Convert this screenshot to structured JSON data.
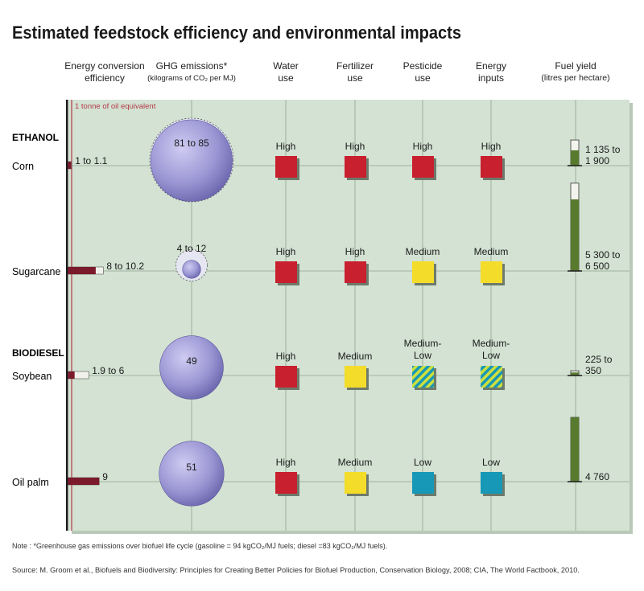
{
  "title": "Estimated feedstock efficiency and environmental impacts",
  "columns": {
    "energy": [
      "Energy conversion",
      "efficiency"
    ],
    "ghg": [
      "GHG emissions*",
      "(kilograms of CO₂ per MJ)"
    ],
    "water": [
      "Water",
      "use"
    ],
    "fertilizer": [
      "Fertilizer",
      "use"
    ],
    "pesticide": [
      "Pesticide",
      "use"
    ],
    "energy_inputs": [
      "Energy",
      "inputs"
    ],
    "yield": [
      "Fuel yield",
      "(litres per hectare)"
    ]
  },
  "reference_label": "1 tonne of oil equivalent",
  "groups": {
    "ethanol": "ETHANOL",
    "biodiesel": "BIODIESEL"
  },
  "note": "Note : *Greenhouse gas emissions over biofuel life cycle (gasoline = 94 kgCO₂/MJ fuels; diesel =83 kgCO₂/MJ fuels).",
  "source": "Source: M. Groom et al., Biofuels and Biodiversity: Principles for Creating Better Policies for Biofuel Production, Conservation Biology, 2008; CIA, The World Factbook, 2010.",
  "colors": {
    "panel": "#d3e2d2",
    "grid": "#8fa58f",
    "energy_bar": "#7a1a2a",
    "reference_line": "#b23a48",
    "bubble": "#9c97d4",
    "yield_bar": "#587a2e",
    "High": "#c8202f",
    "Medium": "#f4dc2a",
    "Medium-Low": "hatched",
    "Low": "#1798b7"
  },
  "chart_data": {
    "type": "table",
    "title": "Estimated feedstock efficiency and environmental impacts",
    "rows": [
      {
        "name": "Corn",
        "group": "ETHANOL",
        "energy_label": "1 to 1.1",
        "energy_min": 1,
        "energy_max": 1.1,
        "ghg_label": "81 to 85",
        "ghg_min": 81,
        "ghg_max": 85,
        "water": "High",
        "fertilizer": "High",
        "pesticide": "High",
        "energy_inputs": "High",
        "yield_label": "1 135 to 1 900",
        "yield_min": 1135,
        "yield_max": 1900
      },
      {
        "name": "Sugarcane",
        "group": "ETHANOL",
        "energy_label": "8 to 10.2",
        "energy_min": 8,
        "energy_max": 10.2,
        "ghg_label": "4 to 12",
        "ghg_min": 4,
        "ghg_max": 12,
        "water": "High",
        "fertilizer": "High",
        "pesticide": "Medium",
        "energy_inputs": "Medium",
        "yield_label": "5 300 to 6 500",
        "yield_min": 5300,
        "yield_max": 6500
      },
      {
        "name": "Soybean",
        "group": "BIODIESEL",
        "energy_label": "1.9 to 6",
        "energy_min": 1.9,
        "energy_max": 6,
        "ghg_label": "49",
        "ghg_min": 49,
        "ghg_max": 49,
        "water": "High",
        "fertilizer": "Medium",
        "pesticide": "Medium-Low",
        "energy_inputs": "Medium-Low",
        "yield_label": "225 to 350",
        "yield_min": 225,
        "yield_max": 350
      },
      {
        "name": "Oil palm",
        "group": "BIODIESEL",
        "energy_label": "9",
        "energy_min": 9,
        "energy_max": 9,
        "ghg_label": "51",
        "ghg_min": 51,
        "ghg_max": 51,
        "water": "High",
        "fertilizer": "Medium",
        "pesticide": "Low",
        "energy_inputs": "Low",
        "yield_label": "4 760",
        "yield_min": 4760,
        "yield_max": 4760
      }
    ]
  }
}
